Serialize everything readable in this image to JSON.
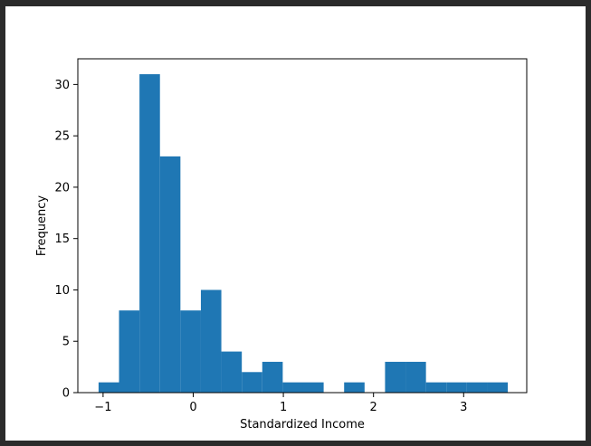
{
  "chart_data": {
    "type": "bar",
    "title": "",
    "xlabel": "Standardized Income",
    "ylabel": "Frequency",
    "bar_color": "#1f77b4",
    "xlim": [
      -1.28,
      3.7
    ],
    "ylim": [
      0,
      32.5
    ],
    "x_ticks": [
      -1,
      0,
      1,
      2,
      3
    ],
    "x_tick_labels": [
      "−1",
      "0",
      "1",
      "2",
      "3"
    ],
    "y_ticks": [
      0,
      5,
      10,
      15,
      20,
      25,
      30
    ],
    "y_tick_labels": [
      "0",
      "5",
      "10",
      "15",
      "20",
      "25",
      "30"
    ],
    "bin_edges": [
      -1.05,
      -0.823,
      -0.596,
      -0.369,
      -0.142,
      0.085,
      0.312,
      0.539,
      0.766,
      0.993,
      1.22,
      1.447,
      1.674,
      1.901,
      2.128,
      2.355,
      2.582,
      2.809,
      3.036,
      3.263,
      3.49
    ],
    "values": [
      1,
      8,
      31,
      23,
      8,
      10,
      4,
      2,
      3,
      1,
      1,
      0,
      1,
      0,
      3,
      3,
      1,
      1,
      1,
      1
    ],
    "grid": false,
    "legend": "none"
  }
}
